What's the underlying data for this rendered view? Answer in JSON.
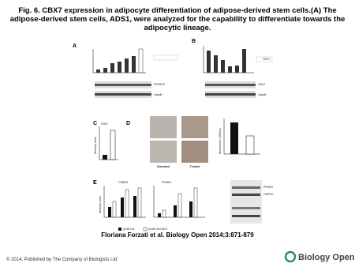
{
  "header": {
    "title": "Fig. 6. CBX7 expression in adipocyte differentiation of adipose-derived stem cells.(A) The adipose-derived stem cells, ADS1, were analyzed for the capability to differentiate towards the adipocytic lineage."
  },
  "figure": {
    "panels": [
      "A",
      "B",
      "C",
      "D",
      "E"
    ],
    "labels": {
      "a_blot": "PPARG2",
      "a_ctrl": "Gapdh",
      "b_legend": "CBX7",
      "b_blot": "CBX7",
      "b_ctrl": "Gapdh",
      "c_title": "CBX7",
      "c_y": "Arbitrary units",
      "d_untreated": "Untreated",
      "d_treated": "Treated",
      "d_y": "Absorbance (500nm)",
      "e_gene1": "CEBPB",
      "e_gene2": "PPARG",
      "e_y": "Arbitrary units",
      "e_blot1": "PPARG",
      "e_blot2": "GAPDH",
      "legend1": "pCefl-HA",
      "legend2": "pCefl-HA-CBX7"
    }
  },
  "caption": "Floriana Forzati et al. Biology Open 2014;3:871-879",
  "footer": {
    "copyright": "© 2014. Published by The Company of Biologists Ltd",
    "logo": "Biology Open"
  }
}
